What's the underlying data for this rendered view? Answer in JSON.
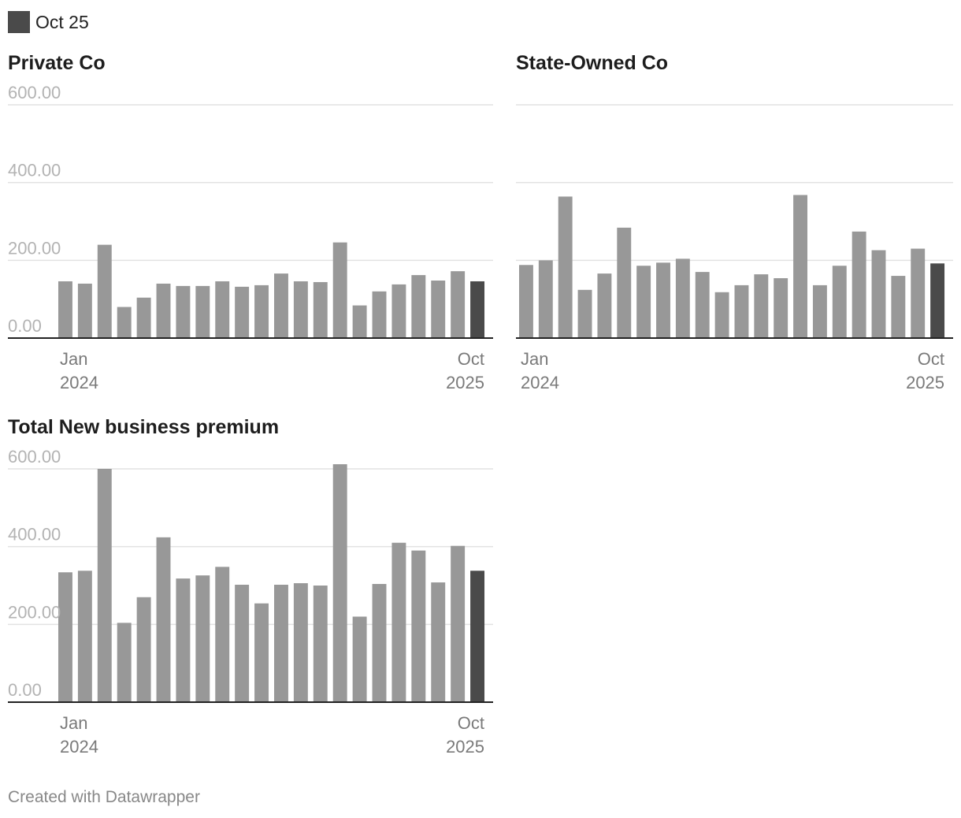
{
  "legend": {
    "label": "Oct 25",
    "color": "#4a4a4a"
  },
  "colors": {
    "bar": "#989898",
    "highlight": "#4a4a4a",
    "grid": "#e2e2e2",
    "axis": "#222222",
    "tick_text": "#b3b3b3",
    "date_text": "#7a7a7a"
  },
  "footer": "Created with Datawrapper",
  "chart_data": [
    {
      "type": "bar",
      "title": "Private Co",
      "yticks": [
        "600.00",
        "400.00",
        "200.00",
        "0.00"
      ],
      "ylim": [
        0,
        600
      ],
      "x_start": [
        "Jan",
        "2024"
      ],
      "x_end": [
        "Oct",
        "2025"
      ],
      "categories": [
        "Jan 2024",
        "Feb 2024",
        "Mar 2024",
        "Apr 2024",
        "May 2024",
        "Jun 2024",
        "Jul 2024",
        "Aug 2024",
        "Sep 2024",
        "Oct 2024",
        "Nov 2024",
        "Dec 2024",
        "Jan 2025",
        "Feb 2025",
        "Mar 2025",
        "Apr 2025",
        "May 2025",
        "Jun 2025",
        "Jul 2025",
        "Aug 2025",
        "Sep 2025",
        "Oct 2025"
      ],
      "values": [
        146,
        140,
        240,
        80,
        104,
        140,
        134,
        134,
        146,
        132,
        136,
        166,
        146,
        144,
        246,
        84,
        120,
        138,
        162,
        148,
        172,
        146
      ],
      "highlight_index": 21
    },
    {
      "type": "bar",
      "title": "State-Owned Co",
      "yticks": [],
      "ylim": [
        0,
        600
      ],
      "x_start": [
        "Jan",
        "2024"
      ],
      "x_end": [
        "Oct",
        "2025"
      ],
      "categories": [
        "Jan 2024",
        "Feb 2024",
        "Mar 2024",
        "Apr 2024",
        "May 2024",
        "Jun 2024",
        "Jul 2024",
        "Aug 2024",
        "Sep 2024",
        "Oct 2024",
        "Nov 2024",
        "Dec 2024",
        "Jan 2025",
        "Feb 2025",
        "Mar 2025",
        "Apr 2025",
        "May 2025",
        "Jun 2025",
        "Jul 2025",
        "Aug 2025",
        "Sep 2025",
        "Oct 2025"
      ],
      "values": [
        188,
        200,
        364,
        124,
        166,
        284,
        186,
        194,
        204,
        170,
        118,
        136,
        164,
        154,
        368,
        136,
        186,
        274,
        226,
        160,
        230,
        192
      ],
      "highlight_index": 21
    },
    {
      "type": "bar",
      "title": "Total New business premium",
      "yticks": [
        "600.00",
        "400.00",
        "200.00",
        "0.00"
      ],
      "ylim": [
        0,
        600
      ],
      "x_start": [
        "Jan",
        "2024"
      ],
      "x_end": [
        "Oct",
        "2025"
      ],
      "categories": [
        "Jan 2024",
        "Feb 2024",
        "Mar 2024",
        "Apr 2024",
        "May 2024",
        "Jun 2024",
        "Jul 2024",
        "Aug 2024",
        "Sep 2024",
        "Oct 2024",
        "Nov 2024",
        "Dec 2024",
        "Jan 2025",
        "Feb 2025",
        "Mar 2025",
        "Apr 2025",
        "May 2025",
        "Jun 2025",
        "Jul 2025",
        "Aug 2025",
        "Sep 2025",
        "Oct 2025"
      ],
      "values": [
        334,
        338,
        600,
        204,
        270,
        424,
        318,
        326,
        348,
        302,
        254,
        302,
        306,
        300,
        612,
        220,
        304,
        410,
        390,
        308,
        402,
        338
      ],
      "highlight_index": 21
    }
  ]
}
